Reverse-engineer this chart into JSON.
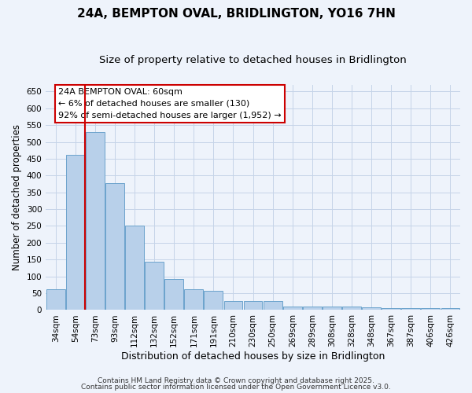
{
  "title": "24A, BEMPTON OVAL, BRIDLINGTON, YO16 7HN",
  "subtitle": "Size of property relative to detached houses in Bridlington",
  "xlabel": "Distribution of detached houses by size in Bridlington",
  "ylabel": "Number of detached properties",
  "categories": [
    "34sqm",
    "54sqm",
    "73sqm",
    "93sqm",
    "112sqm",
    "132sqm",
    "152sqm",
    "171sqm",
    "191sqm",
    "210sqm",
    "230sqm",
    "250sqm",
    "269sqm",
    "289sqm",
    "308sqm",
    "328sqm",
    "348sqm",
    "367sqm",
    "387sqm",
    "406sqm",
    "426sqm"
  ],
  "values": [
    63,
    462,
    530,
    378,
    252,
    143,
    93,
    63,
    58,
    27,
    27,
    27,
    10,
    10,
    10,
    10,
    8,
    5,
    5,
    5,
    5
  ],
  "bar_color": "#b8d0ea",
  "bar_edge_color": "#6ba3cc",
  "background_color": "#eef3fb",
  "grid_color": "#c5d4e8",
  "red_line_x": 1.5,
  "annotation_text": "24A BEMPTON OVAL: 60sqm\n← 6% of detached houses are smaller (130)\n92% of semi-detached houses are larger (1,952) →",
  "annotation_box_color": "#ffffff",
  "annotation_box_edge": "#cc0000",
  "ylim": [
    0,
    670
  ],
  "yticks": [
    0,
    50,
    100,
    150,
    200,
    250,
    300,
    350,
    400,
    450,
    500,
    550,
    600,
    650
  ],
  "footnote1": "Contains HM Land Registry data © Crown copyright and database right 2025.",
  "footnote2": "Contains public sector information licensed under the Open Government Licence v3.0.",
  "title_fontsize": 11,
  "subtitle_fontsize": 9.5,
  "xlabel_fontsize": 9,
  "ylabel_fontsize": 8.5,
  "tick_fontsize": 7.5,
  "annotation_fontsize": 8,
  "footnote_fontsize": 6.5
}
